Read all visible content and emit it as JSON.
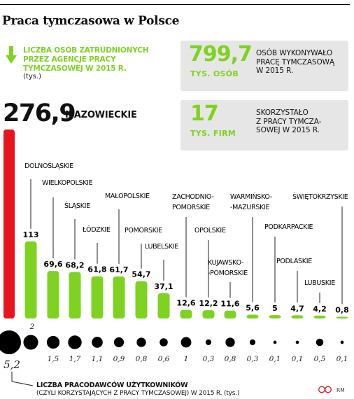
{
  "title": "Praca tymczasowa w Polsce",
  "legend": {
    "text": "LICZBA OSÓB ZATRUDNIONYCH PRZEZ AGENCJE PRACY TYMCZASOWEJ W 2015 R.",
    "unit": "(tys.)",
    "icon": "arrow-down-icon"
  },
  "stats": [
    {
      "value": "799,7",
      "unit": "TYS. OSÓB",
      "desc": [
        "OSÓB WYKONYWAŁO",
        "PRACĘ TYMCZASOWĄ",
        "W 2015 R."
      ]
    },
    {
      "value": "17",
      "unit": "TYS. FIRM",
      "desc": [
        "SKORZYSTAŁO",
        "Z PRACY TYMCZA-",
        "SOWEJ W 2015 R."
      ]
    }
  ],
  "top_region": {
    "value": "276,9",
    "name": "MAZOWIECKIE"
  },
  "chart_data": {
    "type": "bar",
    "unit": "tys.",
    "categories": [
      "MAZOWIECKIE",
      "DOLNOŚLĄSKIE",
      "WIELKOPOLSKIE",
      "ŚLĄSKIE",
      "ŁÓDZKIE",
      "MAŁOPOLSKIE",
      "POMORSKIE",
      "LUBELSKIE",
      "ZACHODNIO-POMORSKIE",
      "OPOLSKIE",
      "KUJAWSKO-POMORSKIE",
      "WARMIŃSKO-MAZURSKIE",
      "PODKARPACKIE",
      "PODLASKIE",
      "LUBUSKIE",
      "ŚWIĘTOKRZYSKIE"
    ],
    "values": [
      276.9,
      113,
      69.6,
      68.2,
      61.8,
      61.7,
      54.7,
      37.1,
      12.6,
      12.2,
      11.6,
      5.6,
      5,
      4.7,
      4.2,
      0.8
    ],
    "value_labels": [
      "276,9",
      "113",
      "69,6",
      "68,2",
      "61,8",
      "61,7",
      "54,7",
      "37,1",
      "12,6",
      "12,2",
      "11,6",
      "5,6",
      "5",
      "4,7",
      "4,2",
      "0,8"
    ],
    "employers": [
      5.2,
      2,
      1.5,
      1.7,
      1.1,
      0.9,
      0.8,
      0.6,
      1,
      0.3,
      0.8,
      0.3,
      0.1,
      0.1,
      0.5,
      0.1
    ],
    "employer_labels": [
      "5,2",
      "2",
      "1,5",
      "1,7",
      "1,1",
      "0,9",
      "0,8",
      "0,6",
      "1",
      "0,3",
      "0,8",
      "0,3",
      "0,1",
      "0,1",
      "0,5",
      "0,1"
    ],
    "colors": {
      "top_bar": "#e8141d",
      "bars": "#7ed321",
      "dots": "#000000"
    }
  },
  "bottom": {
    "title": "LICZBA PRACODAWCÓW UŻYTKOWNIKÓW",
    "subtitle": "(CZYLI KORZYSTAJĄCYCH Z PRACY TYMCZASOWEJ) W 2015 R.",
    "unit": "(tys.)"
  },
  "credit": "RM"
}
